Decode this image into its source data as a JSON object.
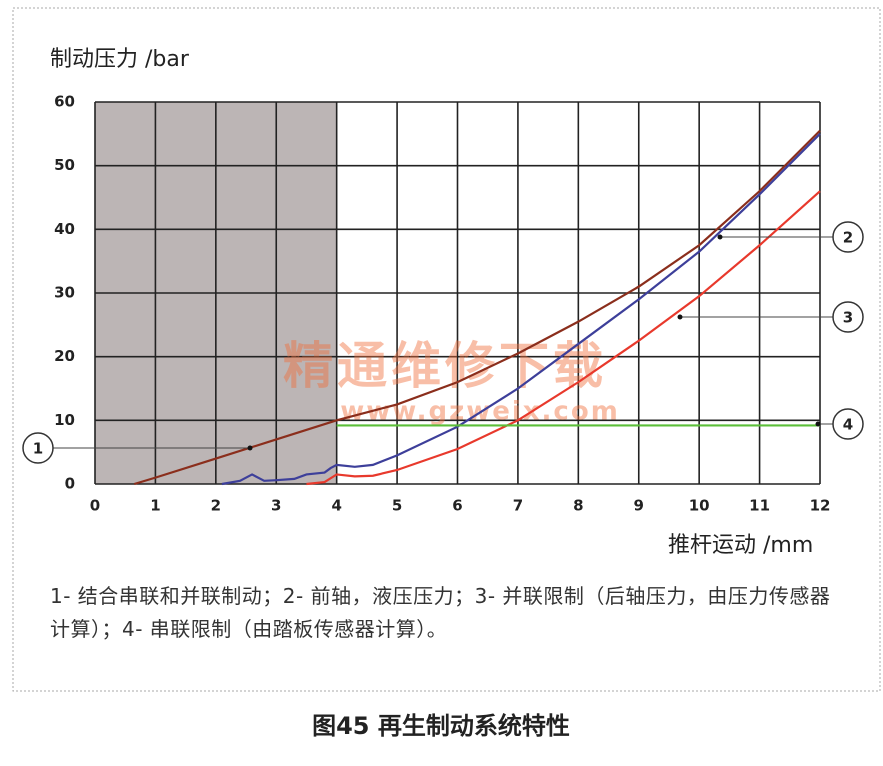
{
  "chart_data": {
    "type": "line",
    "ylabel": "制动压力 /bar",
    "xlabel": "推杆运动 /mm",
    "xlim": [
      0,
      12
    ],
    "ylim": [
      0,
      60
    ],
    "xticks": [
      0,
      1,
      2,
      3,
      4,
      5,
      6,
      7,
      8,
      9,
      10,
      11,
      12
    ],
    "yticks": [
      0,
      10,
      20,
      30,
      40,
      50,
      60
    ],
    "grid": true,
    "shaded_xrange": [
      0,
      4
    ],
    "series": [
      {
        "name": "1",
        "color": "#8b2e1c",
        "x": [
          0.65,
          1,
          2,
          3,
          4,
          5,
          6,
          7,
          8,
          9,
          10,
          11,
          12
        ],
        "values": [
          0,
          1,
          4,
          7,
          10,
          12.5,
          16,
          20.5,
          25.5,
          31,
          37.5,
          46,
          55.5
        ]
      },
      {
        "name": "2",
        "color": "#3d3f9a",
        "x": [
          2.1,
          2.4,
          2.6,
          2.8,
          3,
          3.3,
          3.5,
          3.8,
          3.9,
          4,
          4.3,
          4.6,
          5,
          6,
          7,
          8,
          9,
          10,
          11,
          12
        ],
        "values": [
          0,
          0.5,
          1.5,
          0.5,
          0.6,
          0.8,
          1.5,
          1.8,
          2.5,
          3,
          2.7,
          3,
          4.5,
          9,
          15,
          22,
          29,
          36.5,
          45.5,
          55
        ]
      },
      {
        "name": "3",
        "color": "#e8392c",
        "x": [
          3.5,
          3.8,
          4,
          4.3,
          4.6,
          5,
          6,
          7,
          8,
          9,
          10,
          11,
          12
        ],
        "values": [
          0,
          0.3,
          1.5,
          1.2,
          1.3,
          2.2,
          5.5,
          10,
          16,
          22.5,
          29.5,
          37.5,
          46
        ]
      },
      {
        "name": "4",
        "color": "#5cbf3a",
        "x": [
          4,
          12
        ],
        "values": [
          9.2,
          9.2
        ]
      }
    ],
    "watermark": [
      "精通维修下载",
      "www.gzweix.com"
    ],
    "caption": "1- 结合串联和并联制动；2- 前轴，液压压力；3- 并联限制（后轴压力，由压力传感器计算）；4- 串联限制（由踏板传感器计算）。",
    "figure_title": "图45  再生制动系统特性"
  }
}
